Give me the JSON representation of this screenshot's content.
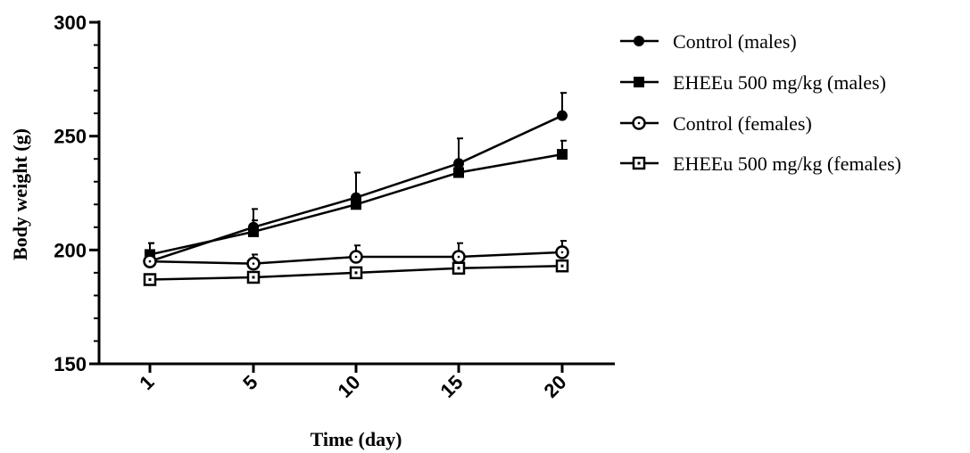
{
  "chart_data": {
    "type": "line",
    "xlabel": "Time (day)",
    "ylabel": "Body weight (g)",
    "x_ticks": [
      "1",
      "5",
      "10",
      "15",
      "20"
    ],
    "y_ticks": [
      150,
      200,
      250,
      300
    ],
    "ylim": [
      150,
      300
    ],
    "grid": false,
    "legend_position": "right",
    "series": [
      {
        "name": "Control (males)",
        "marker": "filled-circle",
        "values": [
          195,
          210,
          223,
          238,
          259
        ],
        "error": [
          8,
          8,
          11,
          11,
          10
        ]
      },
      {
        "name": "EHEEu 500 mg/kg (males)",
        "marker": "filled-square",
        "values": [
          198,
          208,
          220,
          234,
          242
        ],
        "error": [
          5,
          5,
          4,
          3,
          6
        ]
      },
      {
        "name": "Control (females)",
        "marker": "open-circle",
        "values": [
          195,
          194,
          197,
          197,
          199
        ],
        "error": [
          2,
          4,
          5,
          6,
          5
        ]
      },
      {
        "name": "EHEEu 500 mg/kg (females)",
        "marker": "open-square",
        "values": [
          187,
          188,
          190,
          192,
          193
        ],
        "error": [
          2,
          2,
          2,
          2,
          2
        ]
      }
    ]
  }
}
